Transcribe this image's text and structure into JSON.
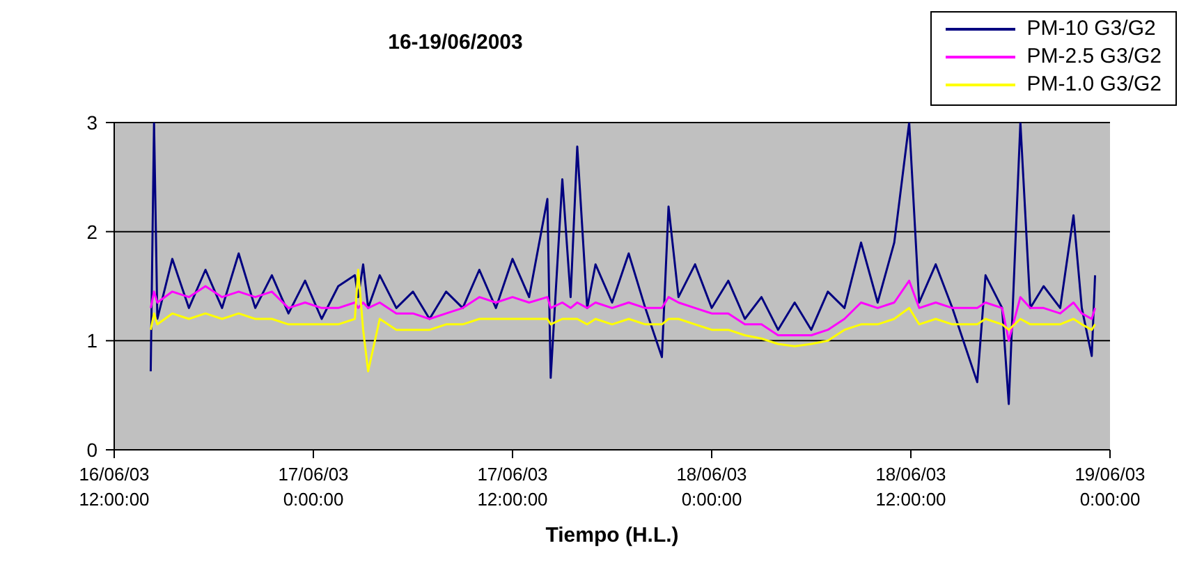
{
  "chart_data": {
    "type": "line",
    "title": "16-19/06/2003",
    "xlabel": "Tiempo (H.L.)",
    "x": [
      "2003-06-16T14:12",
      "2003-06-16T14:24",
      "2003-06-16T14:36",
      "2003-06-16T15:30",
      "2003-06-16T16:30",
      "2003-06-16T17:30",
      "2003-06-16T18:30",
      "2003-06-16T19:30",
      "2003-06-16T20:30",
      "2003-06-16T21:30",
      "2003-06-16T22:30",
      "2003-06-16T23:30",
      "2003-06-17T00:30",
      "2003-06-17T01:30",
      "2003-06-17T02:30",
      "2003-06-17T02:42",
      "2003-06-17T03:00",
      "2003-06-17T03:18",
      "2003-06-17T04:00",
      "2003-06-17T05:00",
      "2003-06-17T06:00",
      "2003-06-17T07:00",
      "2003-06-17T08:00",
      "2003-06-17T09:00",
      "2003-06-17T10:00",
      "2003-06-17T11:00",
      "2003-06-17T12:00",
      "2003-06-17T13:00",
      "2003-06-17T14:06",
      "2003-06-17T14:18",
      "2003-06-17T15:00",
      "2003-06-17T15:30",
      "2003-06-17T15:54",
      "2003-06-17T16:30",
      "2003-06-17T17:00",
      "2003-06-17T18:00",
      "2003-06-17T19:00",
      "2003-06-17T20:00",
      "2003-06-17T21:00",
      "2003-06-17T21:24",
      "2003-06-17T22:00",
      "2003-06-17T23:00",
      "2003-06-18T00:00",
      "2003-06-18T01:00",
      "2003-06-18T02:00",
      "2003-06-18T03:00",
      "2003-06-18T04:00",
      "2003-06-18T05:00",
      "2003-06-18T06:00",
      "2003-06-18T07:00",
      "2003-06-18T08:00",
      "2003-06-18T09:00",
      "2003-06-18T10:00",
      "2003-06-18T11:00",
      "2003-06-18T11:54",
      "2003-06-18T12:30",
      "2003-06-18T13:30",
      "2003-06-18T14:30",
      "2003-06-18T16:00",
      "2003-06-18T16:30",
      "2003-06-18T17:30",
      "2003-06-18T17:54",
      "2003-06-18T18:36",
      "2003-06-18T19:12",
      "2003-06-18T20:00",
      "2003-06-18T21:00",
      "2003-06-18T21:48",
      "2003-06-18T22:18",
      "2003-06-18T22:54",
      "2003-06-18T23:06"
    ],
    "series": [
      {
        "name": "PM-10 G3/G2",
        "color": "#000080",
        "values": [
          0.72,
          3.0,
          1.2,
          1.75,
          1.3,
          1.65,
          1.3,
          1.8,
          1.3,
          1.6,
          1.25,
          1.55,
          1.2,
          1.5,
          1.6,
          1.4,
          1.7,
          1.3,
          1.6,
          1.3,
          1.45,
          1.2,
          1.45,
          1.3,
          1.65,
          1.3,
          1.75,
          1.4,
          2.3,
          0.66,
          2.48,
          1.4,
          2.78,
          1.3,
          1.7,
          1.35,
          1.8,
          1.3,
          0.85,
          2.23,
          1.4,
          1.7,
          1.3,
          1.55,
          1.2,
          1.4,
          1.1,
          1.35,
          1.1,
          1.45,
          1.3,
          1.9,
          1.35,
          1.9,
          3.0,
          1.35,
          1.7,
          1.3,
          0.62,
          1.6,
          1.3,
          0.42,
          3.0,
          1.3,
          1.5,
          1.3,
          2.15,
          1.3,
          0.86,
          1.6
        ]
      },
      {
        "name": "PM-2.5 G3/G2",
        "color": "#ff00ff",
        "values": [
          1.3,
          1.45,
          1.35,
          1.45,
          1.4,
          1.5,
          1.4,
          1.45,
          1.4,
          1.45,
          1.3,
          1.35,
          1.3,
          1.3,
          1.35,
          1.3,
          1.35,
          1.3,
          1.35,
          1.25,
          1.25,
          1.2,
          1.25,
          1.3,
          1.4,
          1.35,
          1.4,
          1.35,
          1.4,
          1.3,
          1.35,
          1.3,
          1.35,
          1.3,
          1.35,
          1.3,
          1.35,
          1.3,
          1.3,
          1.4,
          1.35,
          1.3,
          1.25,
          1.25,
          1.15,
          1.15,
          1.05,
          1.05,
          1.05,
          1.1,
          1.2,
          1.35,
          1.3,
          1.35,
          1.55,
          1.3,
          1.35,
          1.3,
          1.3,
          1.35,
          1.3,
          1.0,
          1.4,
          1.3,
          1.3,
          1.25,
          1.35,
          1.25,
          1.2,
          1.3
        ]
      },
      {
        "name": "PM-1.0 G3/G2",
        "color": "#ffff00",
        "values": [
          1.1,
          1.25,
          1.15,
          1.25,
          1.2,
          1.25,
          1.2,
          1.25,
          1.2,
          1.2,
          1.15,
          1.15,
          1.15,
          1.15,
          1.2,
          1.65,
          1.1,
          0.72,
          1.2,
          1.1,
          1.1,
          1.1,
          1.15,
          1.15,
          1.2,
          1.2,
          1.2,
          1.2,
          1.2,
          1.15,
          1.2,
          1.2,
          1.2,
          1.15,
          1.2,
          1.15,
          1.2,
          1.15,
          1.15,
          1.2,
          1.2,
          1.15,
          1.1,
          1.1,
          1.05,
          1.02,
          0.97,
          0.95,
          0.97,
          1.0,
          1.1,
          1.15,
          1.15,
          1.2,
          1.3,
          1.15,
          1.2,
          1.15,
          1.15,
          1.2,
          1.15,
          1.1,
          1.2,
          1.15,
          1.15,
          1.15,
          1.2,
          1.15,
          1.1,
          1.15
        ]
      }
    ],
    "xlim": [
      "2003-06-16T12:00",
      "2003-06-19T00:00"
    ],
    "xticks": [
      {
        "value": "2003-06-16T12:00",
        "label": "16/06/03\n12:00:00"
      },
      {
        "value": "2003-06-17T00:00",
        "label": "17/06/03\n0:00:00"
      },
      {
        "value": "2003-06-17T12:00",
        "label": "17/06/03\n12:00:00"
      },
      {
        "value": "2003-06-18T00:00",
        "label": "18/06/03\n0:00:00"
      },
      {
        "value": "2003-06-18T12:00",
        "label": "18/06/03\n12:00:00"
      },
      {
        "value": "2003-06-19T00:00",
        "label": "19/06/03\n0:00:00"
      }
    ],
    "ylim": [
      0,
      3
    ],
    "yticks": [
      0,
      1,
      2,
      3
    ],
    "grid": "y",
    "legend": "top right",
    "marker": "none",
    "line_style": "solid"
  }
}
